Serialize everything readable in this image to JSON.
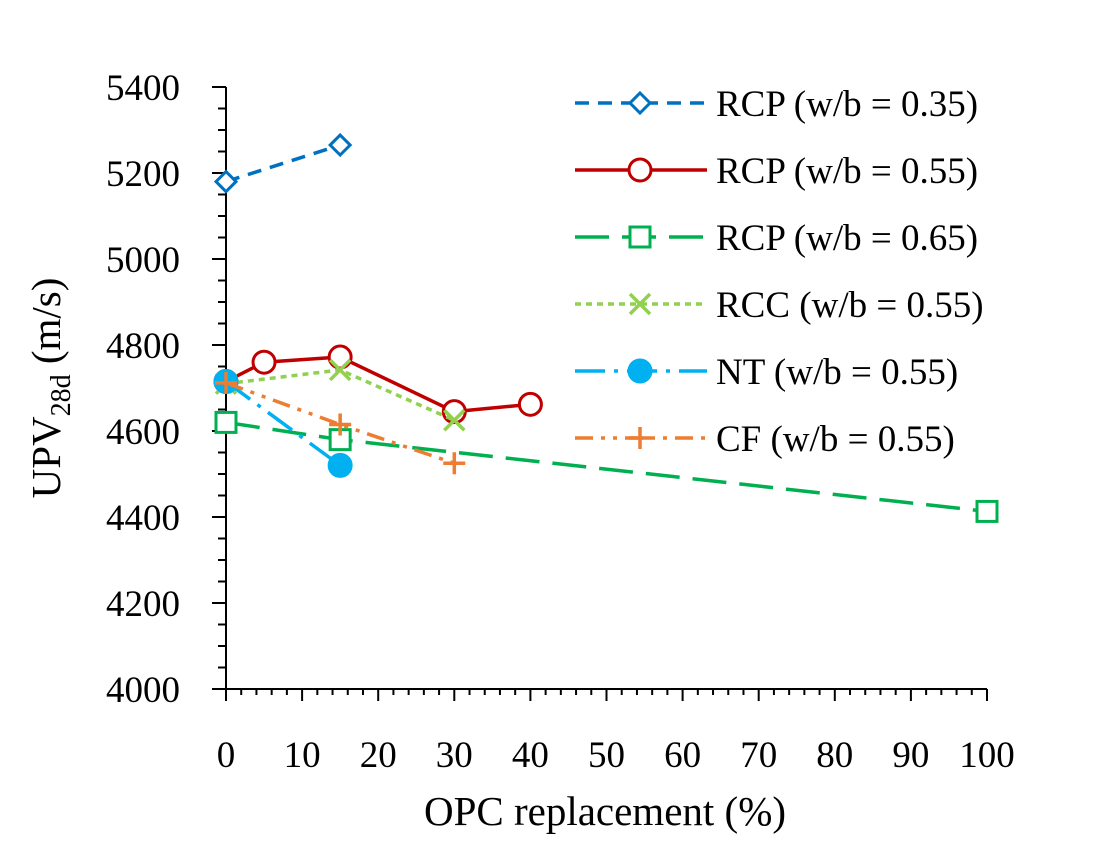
{
  "chart_data": {
    "type": "line",
    "title": "",
    "xlabel": "OPC replacement (%)",
    "ylabel_main": "UPV",
    "ylabel_sub": "28d",
    "ylabel_tail": " (m/s)",
    "xlim": [
      0,
      100
    ],
    "ylim": [
      4000,
      5400
    ],
    "x_major_ticks": [
      0,
      10,
      20,
      30,
      40,
      50,
      60,
      70,
      80,
      90,
      100
    ],
    "x_minor_step": 2,
    "y_major_ticks": [
      4000,
      4200,
      4400,
      4600,
      4800,
      5000,
      5200,
      5400
    ],
    "y_minor_step": 50,
    "grid": false,
    "legend_position": "top-right",
    "series": [
      {
        "name": "RCP (w/b = 0.35)",
        "color": "#0070C0",
        "marker": "diamond",
        "dash": "dash",
        "points": [
          [
            0,
            5180
          ],
          [
            15,
            5265
          ]
        ]
      },
      {
        "name": "RCP (w/b = 0.55)",
        "color": "#C00000",
        "marker": "circle-open",
        "dash": "solid",
        "points": [
          [
            0,
            4715
          ],
          [
            5,
            4760
          ],
          [
            15,
            4772
          ],
          [
            30,
            4645
          ],
          [
            40,
            4662
          ]
        ]
      },
      {
        "name": "RCP (w/b = 0.65)",
        "color": "#00B050",
        "marker": "square",
        "dash": "longdash",
        "points": [
          [
            0,
            4620
          ],
          [
            15,
            4580
          ],
          [
            100,
            4413
          ]
        ]
      },
      {
        "name": "RCC (w/b = 0.55)",
        "color": "#92D050",
        "marker": "x",
        "dash": "dot",
        "points": [
          [
            0,
            4710
          ],
          [
            15,
            4742
          ],
          [
            30,
            4625
          ]
        ]
      },
      {
        "name": "NT (w/b = 0.55)",
        "color": "#00B0F0",
        "marker": "circle-filled",
        "dash": "longdashdot",
        "points": [
          [
            0,
            4715
          ],
          [
            15,
            4520
          ]
        ]
      },
      {
        "name": "CF (w/b = 0.55)",
        "color": "#ED7D31",
        "marker": "plus",
        "dash": "dashdotdot",
        "points": [
          [
            0,
            4712
          ],
          [
            15,
            4615
          ],
          [
            30,
            4525
          ]
        ]
      }
    ]
  }
}
